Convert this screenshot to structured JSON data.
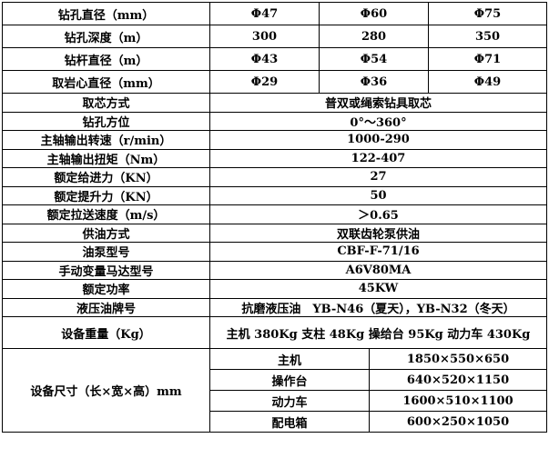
{
  "table": {
    "rows": [
      [
        "钻孔直径（mm）",
        "Φ47",
        "Φ60",
        "Φ75"
      ],
      [
        "钻孔深度（m）",
        "300",
        "280",
        "350"
      ],
      [
        "钻杆直径（m）",
        "Φ43",
        "Φ54",
        "Φ71"
      ],
      [
        "取岩心直径（mm）",
        "Φ29",
        "Φ36",
        "Φ49"
      ],
      [
        "取芯方式",
        "普双或绳索钻具取芯"
      ],
      [
        "钻孔方位",
        "0°～360°"
      ],
      [
        "主轴输出转速（r/min）",
        "1000-290"
      ],
      [
        "主轴输出扭矩（Nm）",
        "122-407"
      ],
      [
        "额定给进力（KN）",
        "27"
      ],
      [
        "额定提升力（KN）",
        "50"
      ],
      [
        "额定拉送速度（m/s）",
        "＞0.65"
      ],
      [
        "供油方式",
        "双联齿轮泵供油"
      ],
      [
        "油泵型号",
        "CBF-F-71/16"
      ],
      [
        "手动变量马达型号",
        "A6V80MA"
      ],
      [
        "额定功率",
        "45KW"
      ],
      [
        "液压油牌号",
        "抗磨液压油　YB-N46（夏天），YB-N32（冬天）"
      ],
      [
        "设备重量（Kg）",
        "主机 380Kg 支柱 48Kg 操给台 95Kg 动力车 430Kg"
      ],
      [
        "设备尺寸（长×宽×高）mm",
        "主机",
        "1850×550×650"
      ],
      [
        "操作台",
        "640×520×1150"
      ],
      [
        "动力车",
        "1600×510×1100"
      ],
      [
        "配电箱",
        "600×250×1050"
      ]
    ]
  }
}
